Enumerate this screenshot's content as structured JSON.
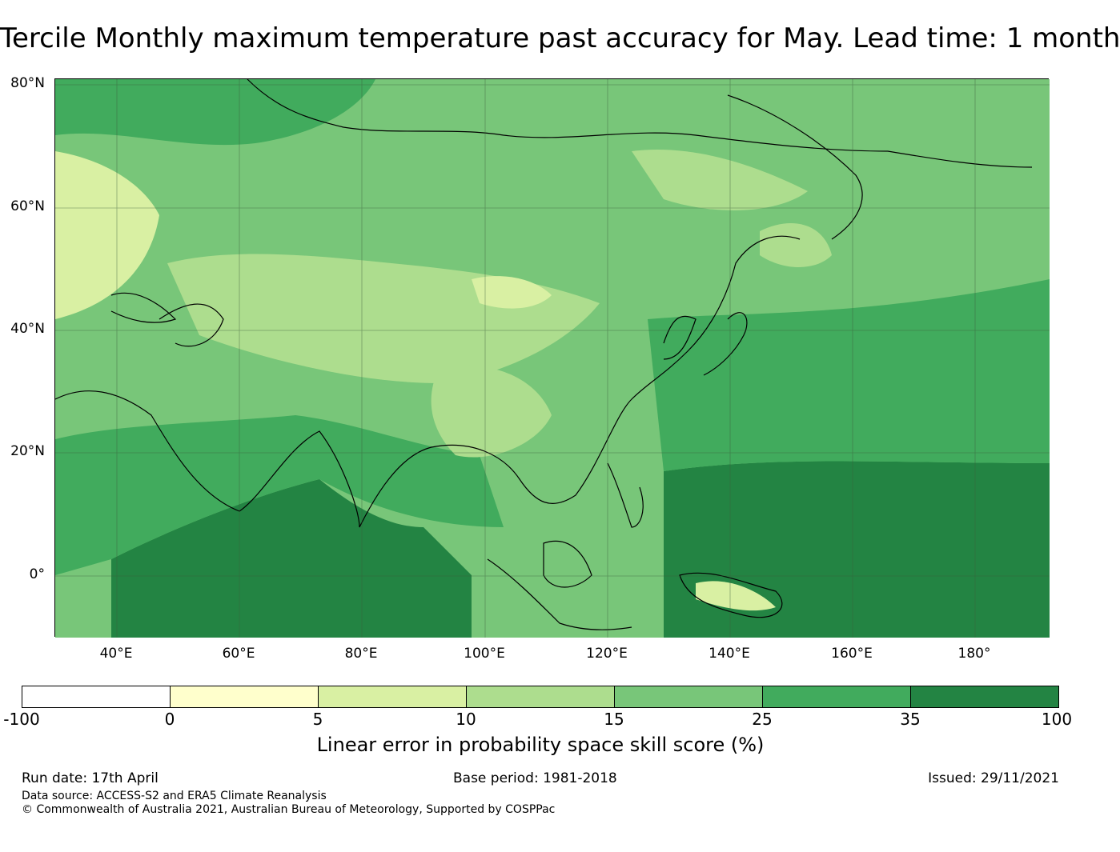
{
  "title": "Tercile Monthly maximum temperature past accuracy for May. Lead time: 1 month",
  "map": {
    "lat_labels": [
      "80°N",
      "60°N",
      "40°N",
      "20°N",
      "0°"
    ],
    "lon_labels": [
      "40°E",
      "60°E",
      "80°E",
      "100°E",
      "120°E",
      "140°E",
      "160°E",
      "180°"
    ],
    "ocean_color": "#45a85a",
    "gridline_color": "#3a5a3a",
    "coast_color": "#000000"
  },
  "colorbar": {
    "ticks": [
      "-100",
      "0",
      "5",
      "10",
      "15",
      "25",
      "35",
      "100"
    ],
    "colors": [
      "#ffffff",
      "#ffffcc",
      "#d9f0a3",
      "#addd8e",
      "#78c679",
      "#41ab5d",
      "#238443"
    ],
    "label": "Linear error in probability space skill score (%)"
  },
  "footer": {
    "run_date": "Run date: 17th April",
    "base_period": "Base period: 1981-2018",
    "issued": "Issued: 29/11/2021",
    "data_source": "Data source: ACCESS-S2 and ERA5 Climate Reanalysis",
    "copyright": "© Commonwealth of Australia 2021, Australian Bureau of Meteorology, Supported by COSPPac"
  }
}
